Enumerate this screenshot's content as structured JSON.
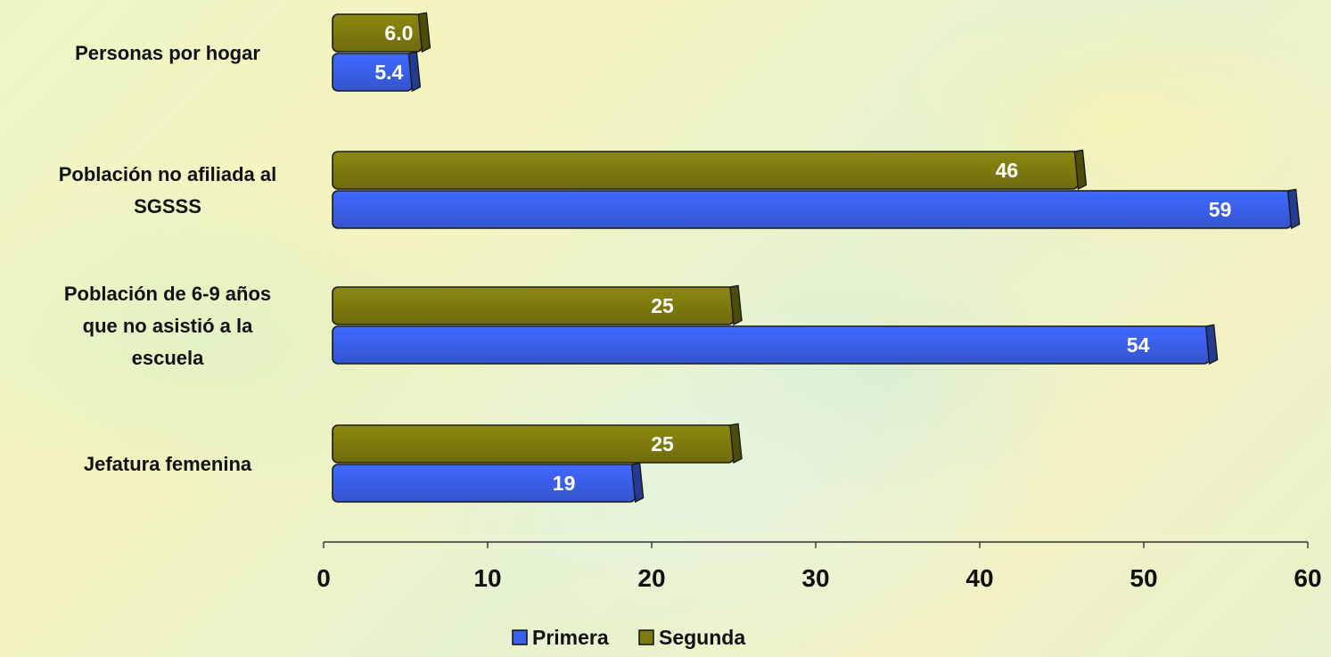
{
  "chart_data": {
    "type": "bar",
    "orientation": "horizontal",
    "categories": [
      [
        "Personas por hogar"
      ],
      [
        "Población no afiliada al",
        "SGSSS"
      ],
      [
        "Población de 6-9 años",
        "que no asistió a la",
        "escuela"
      ],
      [
        "Jefatura femenina"
      ]
    ],
    "series": [
      {
        "name": "Primera",
        "color": "#3a5fe8",
        "values": [
          5.4,
          59,
          54,
          19
        ],
        "labels": [
          "5.4",
          "59",
          "54",
          "19"
        ]
      },
      {
        "name": "Segunda",
        "color": "#7d7a0e",
        "values": [
          6.0,
          46,
          25,
          25
        ],
        "labels": [
          "6.0",
          "46",
          "25",
          "25"
        ]
      }
    ],
    "xlim": [
      0,
      60
    ],
    "xticks": [
      0,
      10,
      20,
      30,
      40,
      50,
      60
    ],
    "data_label_color": "#ffffff",
    "legend_position": "bottom",
    "grid": false
  }
}
